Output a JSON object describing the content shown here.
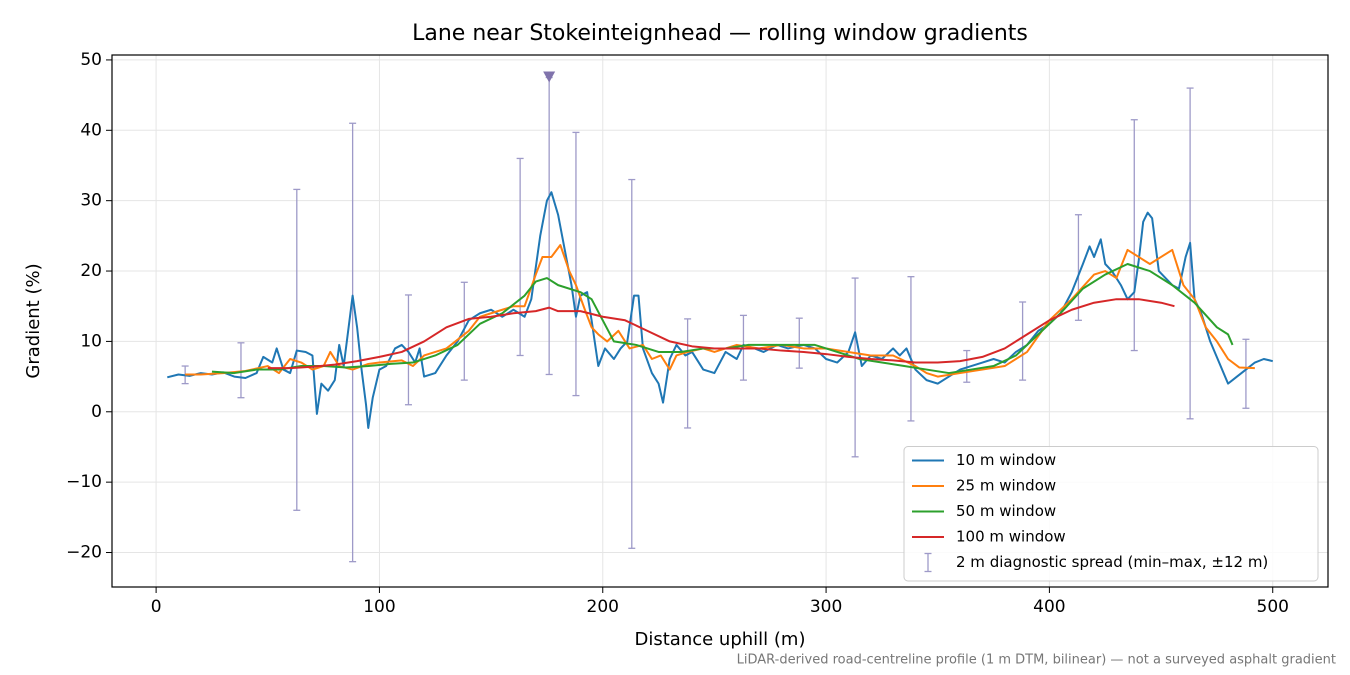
{
  "chart_data": {
    "type": "line",
    "title": "Lane near Stokeinteignhead — rolling window gradients",
    "x_label": "Distance uphill (m)",
    "y_label": "Gradient (%)",
    "footnote": "LiDAR-derived road-centreline profile (1 m DTM, bilinear) — not a surveyed asphalt gradient",
    "xlim": [
      -19.75,
      524.75
    ],
    "ylim": [
      -24.9,
      50.7
    ],
    "xticks": [
      0,
      100,
      200,
      300,
      400,
      500
    ],
    "yticks": [
      {
        "value": -20,
        "label": "−20"
      },
      {
        "value": -10,
        "label": "−10"
      },
      0,
      10,
      20,
      30,
      40,
      50
    ],
    "grid": true,
    "legend": "lower right",
    "series": [
      {
        "name": "10 m window",
        "color": "#1f77b4",
        "x": [
          5,
          10,
          15,
          20,
          25,
          30,
          35,
          40,
          45,
          48,
          52,
          54,
          57,
          60,
          63,
          67,
          70,
          72,
          74,
          77,
          80,
          82,
          84,
          87,
          88,
          90,
          92,
          94,
          95,
          97,
          100,
          103,
          107,
          110,
          113,
          116,
          118,
          120,
          125,
          130,
          135,
          140,
          145,
          150,
          155,
          160,
          165,
          168,
          172,
          175,
          177,
          180,
          183,
          186,
          188,
          190,
          193,
          195,
          198,
          201,
          205,
          208,
          211,
          214,
          216,
          218,
          222,
          225,
          227,
          230,
          233,
          237,
          240,
          245,
          250,
          255,
          260,
          263,
          268,
          272,
          278,
          283,
          290,
          295,
          300,
          305,
          310,
          313,
          316,
          320,
          325,
          330,
          333,
          336,
          340,
          345,
          350,
          355,
          360,
          365,
          370,
          375,
          380,
          385,
          390,
          395,
          400,
          405,
          410,
          415,
          418,
          420,
          423,
          425,
          428,
          432,
          435,
          438,
          440,
          442,
          444,
          446,
          449,
          452,
          455,
          458,
          461,
          463,
          465,
          468,
          472,
          476,
          480,
          484,
          488,
          492,
          496,
          500
        ],
        "values": [
          4.9,
          5.3,
          5.1,
          5.5,
          5.3,
          5.6,
          5.0,
          4.8,
          5.5,
          7.8,
          7.0,
          9.0,
          6.0,
          5.5,
          8.7,
          8.5,
          8.0,
          -0.3,
          4.0,
          3.0,
          4.5,
          9.5,
          6.5,
          14.0,
          16.5,
          12.0,
          6.0,
          1.0,
          -2.3,
          2.0,
          6.0,
          6.5,
          9.0,
          9.5,
          8.5,
          7.0,
          9.0,
          5.0,
          5.5,
          8.0,
          10.0,
          13.0,
          14.0,
          14.5,
          13.5,
          14.5,
          13.5,
          16.0,
          25.0,
          30.0,
          31.2,
          28.0,
          23.0,
          18.0,
          13.5,
          16.5,
          17.0,
          13.0,
          6.5,
          9.0,
          7.5,
          9.0,
          10.0,
          16.5,
          16.5,
          9.0,
          5.5,
          4.0,
          1.3,
          7.5,
          9.5,
          8.0,
          8.5,
          6.0,
          5.5,
          8.5,
          7.5,
          9.5,
          9.0,
          8.5,
          9.5,
          9.0,
          9.5,
          9.0,
          7.5,
          7.0,
          8.5,
          11.3,
          6.5,
          8.0,
          7.5,
          9.0,
          8.0,
          9.0,
          6.0,
          4.5,
          4.0,
          5.0,
          6.0,
          6.5,
          7.0,
          7.5,
          7.0,
          8.5,
          9.5,
          11.5,
          12.5,
          14.0,
          17.0,
          21.0,
          23.5,
          22.0,
          24.5,
          21.0,
          20.0,
          18.0,
          16.0,
          17.0,
          21.5,
          27.0,
          28.3,
          27.5,
          20.0,
          19.0,
          18.0,
          17.5,
          22.0,
          24.0,
          16.0,
          14.0,
          10.0,
          7.0,
          4.0,
          5.0,
          6.0,
          7.0,
          7.5,
          7.2
        ]
      },
      {
        "name": "25 m window",
        "color": "#ff7f0e",
        "x": [
          13,
          20,
          30,
          40,
          50,
          55,
          60,
          65,
          70,
          75,
          78,
          82,
          88,
          95,
          100,
          110,
          115,
          120,
          130,
          140,
          145,
          150,
          155,
          160,
          165,
          170,
          173,
          177,
          181,
          185,
          188,
          192,
          195,
          198,
          202,
          207,
          212,
          218,
          222,
          226,
          230,
          233,
          238,
          245,
          250,
          260,
          270,
          280,
          290,
          300,
          310,
          320,
          330,
          340,
          345,
          350,
          360,
          370,
          380,
          390,
          400,
          410,
          420,
          425,
          430,
          435,
          440,
          445,
          450,
          455,
          460,
          465,
          470,
          475,
          480,
          485,
          492
        ],
        "values": [
          5.3,
          5.3,
          5.5,
          5.8,
          6.5,
          5.5,
          7.5,
          7.0,
          6.0,
          6.5,
          8.5,
          6.5,
          6.0,
          6.8,
          7.0,
          7.3,
          6.5,
          8.0,
          9.0,
          11.5,
          13.5,
          14.0,
          14.5,
          15.0,
          15.0,
          19.5,
          22.0,
          22.0,
          23.7,
          20.0,
          18.0,
          14.5,
          12.0,
          11.0,
          10.0,
          11.5,
          9.0,
          9.5,
          7.5,
          8.0,
          6.0,
          8.0,
          8.5,
          9.0,
          8.5,
          9.5,
          9.0,
          9.5,
          9.0,
          9.0,
          8.5,
          8.0,
          8.0,
          6.5,
          5.5,
          5.0,
          5.5,
          6.0,
          6.5,
          8.5,
          13.0,
          16.0,
          19.5,
          20.0,
          19.0,
          23.0,
          22.0,
          21.0,
          22.0,
          23.0,
          18.0,
          16.0,
          12.0,
          10.0,
          7.5,
          6.3,
          6.2
        ]
      },
      {
        "name": "50 m window",
        "color": "#2ca02c",
        "x": [
          25,
          35,
          45,
          55,
          65,
          75,
          85,
          95,
          105,
          115,
          125,
          135,
          145,
          155,
          165,
          170,
          175,
          180,
          190,
          195,
          200,
          205,
          215,
          225,
          235,
          245,
          255,
          265,
          275,
          285,
          295,
          305,
          315,
          325,
          335,
          345,
          355,
          365,
          375,
          385,
          395,
          405,
          415,
          425,
          435,
          445,
          455,
          465,
          475,
          480,
          482
        ],
        "values": [
          5.7,
          5.5,
          6.0,
          6.0,
          6.5,
          6.5,
          6.3,
          6.5,
          6.8,
          7.0,
          8.0,
          9.5,
          12.5,
          14.0,
          16.5,
          18.5,
          19.0,
          18.0,
          17.0,
          16.0,
          13.0,
          10.0,
          9.5,
          8.5,
          8.5,
          9.0,
          9.0,
          9.5,
          9.5,
          9.5,
          9.5,
          8.5,
          7.5,
          7.0,
          6.5,
          6.0,
          5.5,
          6.0,
          6.5,
          8.0,
          11.0,
          14.0,
          17.5,
          19.5,
          21.0,
          20.0,
          18.0,
          15.5,
          12.0,
          11.0,
          9.5
        ]
      },
      {
        "name": "100 m window",
        "color": "#d62728",
        "x": [
          50,
          60,
          70,
          80,
          90,
          100,
          110,
          120,
          130,
          140,
          150,
          160,
          170,
          176,
          180,
          190,
          200,
          210,
          220,
          230,
          240,
          250,
          260,
          270,
          280,
          290,
          300,
          310,
          320,
          330,
          340,
          350,
          360,
          370,
          380,
          390,
          400,
          410,
          420,
          430,
          440,
          450,
          456
        ],
        "values": [
          6.2,
          6.2,
          6.4,
          6.7,
          7.2,
          7.8,
          8.5,
          10.0,
          12.0,
          13.2,
          13.5,
          14.0,
          14.3,
          14.8,
          14.3,
          14.3,
          13.5,
          13.0,
          11.5,
          10.0,
          9.3,
          9.0,
          9.0,
          9.0,
          8.7,
          8.5,
          8.2,
          7.8,
          7.5,
          7.3,
          7.0,
          7.0,
          7.2,
          7.8,
          9.0,
          11.0,
          13.0,
          14.5,
          15.5,
          16.0,
          16.0,
          15.5,
          15.0
        ]
      }
    ],
    "errorbars": {
      "name": "2 m diagnostic spread (min–max, ±12 m)",
      "color": "#9e9ac8",
      "x": [
        13,
        38,
        63,
        88,
        113,
        138,
        163,
        176,
        188,
        213,
        238,
        263,
        288,
        313,
        338,
        363,
        388,
        413,
        438,
        463,
        488
      ],
      "min": [
        4,
        2,
        -14,
        -21.3,
        1,
        4.5,
        8,
        5.3,
        2.3,
        -19.4,
        -2.3,
        4.5,
        6.2,
        -6.4,
        -1.3,
        4.2,
        4.5,
        13,
        8.7,
        -1,
        0.5
      ],
      "max": [
        6.5,
        9.8,
        31.6,
        41,
        16.6,
        18.4,
        36,
        47.5,
        39.7,
        33,
        13.2,
        13.7,
        13.3,
        19,
        19.2,
        8.7,
        15.6,
        28,
        41.5,
        46,
        10.3
      ]
    },
    "markers": {
      "color": "#8073ac",
      "x": [
        176
      ],
      "values": [
        47.5
      ]
    }
  }
}
